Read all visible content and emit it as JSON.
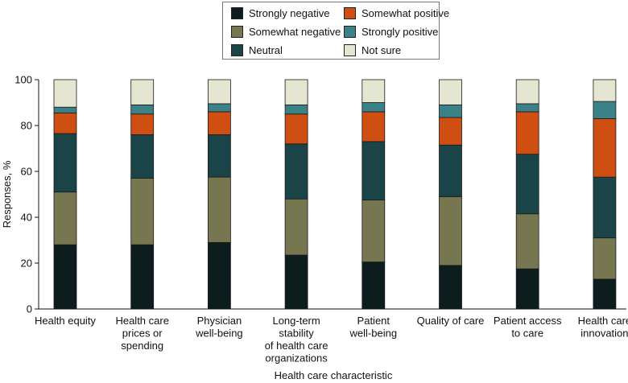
{
  "chart_data": {
    "type": "stacked-bar",
    "title": "",
    "xlabel": "Health care characteristic",
    "ylabel": "Responses, %",
    "ylim": [
      0,
      100
    ],
    "yticks": [
      "0",
      "20",
      "40",
      "60",
      "80",
      "100"
    ],
    "categories": [
      [
        "Health equity"
      ],
      [
        "Health care",
        "prices or",
        "spending"
      ],
      [
        "Physician",
        "well-being"
      ],
      [
        "Long-term",
        "stability",
        "of health care",
        "organizations"
      ],
      [
        "Patient",
        "well-being"
      ],
      [
        "Quality of care"
      ],
      [
        "Patient access",
        "to care"
      ],
      [
        "Health care",
        "innovation"
      ]
    ],
    "series": [
      {
        "name": "Strongly negative",
        "color": "#0d1c1c",
        "values": [
          28,
          28,
          29,
          23.5,
          20.5,
          19,
          17.5,
          13
        ]
      },
      {
        "name": "Somewhat negative",
        "color": "#767651",
        "values": [
          23,
          29,
          28.5,
          24.5,
          27,
          30,
          24,
          18
        ]
      },
      {
        "name": "Neutral",
        "color": "#1a4448",
        "values": [
          25.5,
          19,
          18.5,
          24,
          25.5,
          22.5,
          26,
          26.5
        ]
      },
      {
        "name": "Somewhat positive",
        "color": "#cf4f12",
        "values": [
          9,
          9,
          10,
          13,
          13,
          12,
          18.5,
          25.5
        ]
      },
      {
        "name": "Strongly positive",
        "color": "#3a8288",
        "values": [
          2.5,
          4,
          3.5,
          4,
          4,
          5.5,
          3.5,
          7.5
        ]
      },
      {
        "name": "Not sure",
        "color": "#e5e6d2",
        "values": [
          12,
          11,
          10.5,
          11,
          10,
          11,
          10.5,
          9.5
        ]
      }
    ]
  }
}
